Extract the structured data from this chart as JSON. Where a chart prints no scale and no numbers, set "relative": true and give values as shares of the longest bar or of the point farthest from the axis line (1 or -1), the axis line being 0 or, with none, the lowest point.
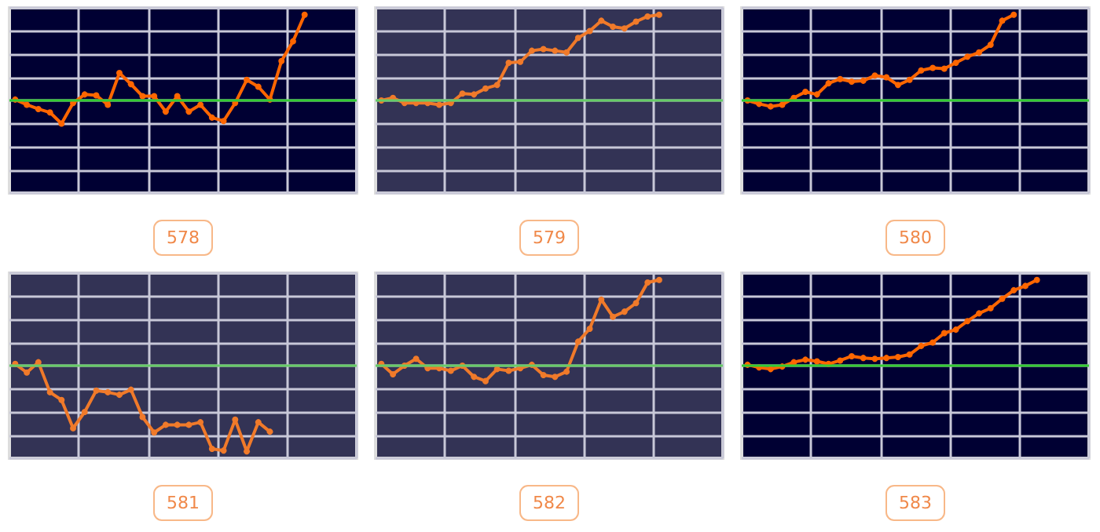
{
  "chart_data": [
    {
      "type": "line",
      "title": "578",
      "relative": true,
      "grid": true,
      "marker": "circle",
      "categories": [
        null,
        null,
        null,
        null,
        null,
        null,
        null,
        null,
        null,
        null,
        null,
        null,
        null,
        null,
        null,
        null,
        null,
        null,
        null,
        null,
        null,
        null,
        null,
        null,
        null,
        null,
        null,
        null,
        null,
        null
      ],
      "series": [
        {
          "color": "#ff6600",
          "values": [
            0.01,
            -0.05,
            -0.1,
            -0.14,
            -0.27,
            -0.03,
            0.07,
            0.06,
            -0.05,
            0.32,
            0.19,
            0.05,
            0.05,
            -0.13,
            0.05,
            -0.13,
            -0.05,
            -0.2,
            -0.24,
            -0.03,
            0.24,
            0.16,
            0.01,
            0.46,
            0.69,
            1,
            null,
            null,
            null,
            null
          ]
        }
      ],
      "ref_lines": [
        {
          "axis": "y",
          "value": 0,
          "color": "#33cc33"
        }
      ]
    },
    {
      "type": "line",
      "title": "579",
      "relative": true,
      "grid": true,
      "marker": "circle",
      "categories": [
        null,
        null,
        null,
        null,
        null,
        null,
        null,
        null,
        null,
        null,
        null,
        null,
        null,
        null,
        null,
        null,
        null,
        null,
        null,
        null,
        null,
        null,
        null,
        null,
        null,
        null,
        null,
        null,
        null,
        null
      ],
      "series": [
        {
          "color": "#f07a2a",
          "values": [
            0,
            0.03,
            -0.03,
            -0.03,
            -0.03,
            -0.05,
            -0.03,
            0.08,
            0.07,
            0.14,
            0.18,
            0.44,
            0.45,
            0.58,
            0.6,
            0.58,
            0.56,
            0.73,
            0.81,
            0.93,
            0.86,
            0.84,
            0.92,
            0.98,
            1,
            null,
            null,
            null,
            null,
            null
          ]
        }
      ],
      "ref_lines": [
        {
          "axis": "y",
          "value": 0,
          "color": "#66cc66"
        }
      ]
    },
    {
      "type": "line",
      "title": "580",
      "relative": true,
      "grid": true,
      "marker": "circle",
      "categories": [
        null,
        null,
        null,
        null,
        null,
        null,
        null,
        null,
        null,
        null,
        null,
        null,
        null,
        null,
        null,
        null,
        null,
        null,
        null,
        null,
        null,
        null,
        null,
        null,
        null,
        null,
        null,
        null,
        null,
        null
      ],
      "series": [
        {
          "color": "#ff6600",
          "values": [
            0,
            -0.04,
            -0.07,
            -0.05,
            0.03,
            0.1,
            0.07,
            0.2,
            0.25,
            0.22,
            0.23,
            0.29,
            0.27,
            0.18,
            0.24,
            0.35,
            0.38,
            0.37,
            0.44,
            0.51,
            0.56,
            0.65,
            0.93,
            1,
            null,
            null,
            null,
            null,
            null,
            null
          ]
        }
      ],
      "ref_lines": [
        {
          "axis": "y",
          "value": 0,
          "color": "#33cc33"
        }
      ]
    },
    {
      "type": "line",
      "title": "581",
      "relative": true,
      "grid": true,
      "marker": "circle",
      "categories": [
        null,
        null,
        null,
        null,
        null,
        null,
        null,
        null,
        null,
        null,
        null,
        null,
        null,
        null,
        null,
        null,
        null,
        null,
        null,
        null,
        null,
        null,
        null,
        null,
        null,
        null,
        null,
        null,
        null,
        null
      ],
      "series": [
        {
          "color": "#f07a2a",
          "values": [
            0.02,
            -0.08,
            0.04,
            -0.31,
            -0.4,
            -0.73,
            -0.54,
            -0.29,
            -0.31,
            -0.34,
            -0.28,
            -0.6,
            -0.78,
            -0.69,
            -0.69,
            -0.69,
            -0.66,
            -0.97,
            -0.99,
            -0.63,
            -1,
            -0.66,
            -0.77,
            null,
            null,
            null,
            null,
            null,
            null,
            null
          ]
        }
      ],
      "ref_lines": [
        {
          "axis": "y",
          "value": 0,
          "color": "#66cc66"
        }
      ]
    },
    {
      "type": "line",
      "title": "582",
      "relative": true,
      "grid": true,
      "marker": "circle",
      "categories": [
        null,
        null,
        null,
        null,
        null,
        null,
        null,
        null,
        null,
        null,
        null,
        null,
        null,
        null,
        null,
        null,
        null,
        null,
        null,
        null,
        null,
        null,
        null,
        null,
        null,
        null,
        null,
        null,
        null,
        null
      ],
      "series": [
        {
          "color": "#f07a2a",
          "values": [
            0.02,
            -0.1,
            0,
            0.08,
            -0.03,
            -0.03,
            -0.06,
            0,
            -0.13,
            -0.18,
            -0.04,
            -0.06,
            -0.03,
            0.01,
            -0.11,
            -0.13,
            -0.07,
            0.28,
            0.43,
            0.77,
            0.57,
            0.63,
            0.73,
            0.97,
            1,
            null,
            null,
            null,
            null,
            null
          ]
        }
      ],
      "ref_lines": [
        {
          "axis": "y",
          "value": 0,
          "color": "#66cc66"
        }
      ]
    },
    {
      "type": "line",
      "title": "583",
      "relative": true,
      "grid": true,
      "marker": "circle",
      "categories": [
        null,
        null,
        null,
        null,
        null,
        null,
        null,
        null,
        null,
        null,
        null,
        null,
        null,
        null,
        null,
        null,
        null,
        null,
        null,
        null,
        null,
        null,
        null,
        null,
        null,
        null,
        null,
        null,
        null,
        null
      ],
      "series": [
        {
          "color": "#ff6600",
          "values": [
            0.01,
            -0.02,
            -0.04,
            -0.01,
            0.04,
            0.07,
            0.05,
            0.02,
            0.06,
            0.11,
            0.09,
            0.08,
            0.09,
            0.1,
            0.13,
            0.23,
            0.27,
            0.38,
            0.42,
            0.52,
            0.61,
            0.67,
            0.78,
            0.88,
            0.93,
            1,
            null,
            null,
            null,
            null
          ]
        }
      ],
      "ref_lines": [
        {
          "axis": "y",
          "value": 0,
          "color": "#33cc33"
        }
      ]
    }
  ]
}
